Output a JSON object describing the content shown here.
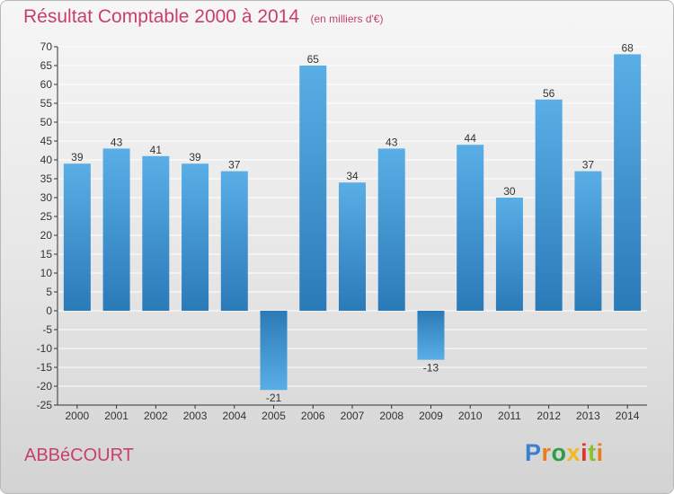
{
  "header": {
    "title": "Résultat Comptable 2000 à 2014",
    "subtitle": "(en milliers d'€)"
  },
  "footer": {
    "commune": "ABBéCOURT",
    "logo_text": "Proxiti",
    "logo_colors": [
      "#3a7fd0",
      "#e87d1e",
      "#2e9e43",
      "#f2b81c",
      "#d8372f",
      "#8bbf2c",
      "#e87d1e"
    ]
  },
  "colors": {
    "bar_light": "#5aaee6",
    "bar_dark": "#2a7ab8",
    "grid": "#ffffff",
    "axis": "#333333",
    "text": "#333333",
    "title": "#c8406a"
  },
  "chart_data": {
    "type": "bar",
    "title": "Résultat Comptable 2000 à 2014",
    "subtitle": "(en milliers d'€)",
    "categories": [
      "2000",
      "2001",
      "2002",
      "2003",
      "2004",
      "2005",
      "2006",
      "2007",
      "2008",
      "2009",
      "2010",
      "2011",
      "2012",
      "2013",
      "2014"
    ],
    "values": [
      39,
      43,
      41,
      39,
      37,
      -21,
      65,
      34,
      43,
      -13,
      44,
      30,
      56,
      37,
      68
    ],
    "ylim": [
      -25,
      70
    ],
    "ytick_step": 5,
    "grid": true,
    "data_labels": true,
    "legend": "none"
  }
}
